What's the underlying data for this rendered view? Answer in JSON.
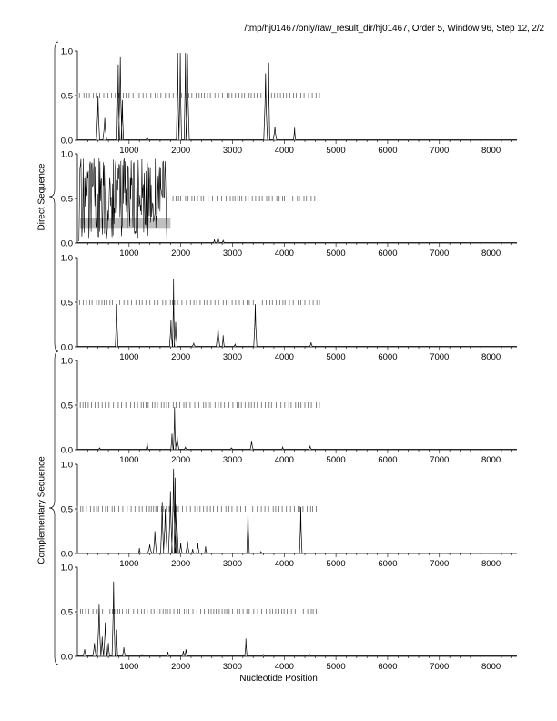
{
  "header": {
    "title": "/tmp/hj01467/only/raw_result_dir/hj01467, Order 5, Window 96, Step 12, 2/2"
  },
  "groups": {
    "direct_label": "Direct Sequence",
    "complementary_label": "Complementary Sequence"
  },
  "x_axis": {
    "label": "Nucleotide Position"
  },
  "colors": {
    "line": "#000000",
    "ticks": "#666666",
    "highlight": "#bfbfbf"
  },
  "chart_data": [
    {
      "type": "line",
      "panel": 1,
      "group": "direct",
      "xlim": [
        0,
        8500
      ],
      "ylim": [
        0,
        1
      ],
      "x_ticks": [
        1000,
        2000,
        3000,
        4000,
        5000,
        6000,
        7000,
        8000
      ],
      "y_ticks": [
        "0.0",
        "0.5",
        "1.0"
      ],
      "peaks": [
        [
          400,
          0.5
        ],
        [
          530,
          0.25
        ],
        [
          790,
          0.85
        ],
        [
          830,
          0.93
        ],
        [
          870,
          0.45
        ],
        [
          1350,
          0.03
        ],
        [
          1940,
          0.98
        ],
        [
          1990,
          0.98
        ],
        [
          2090,
          0.98
        ],
        [
          2130,
          0.97
        ],
        [
          3640,
          0.75
        ],
        [
          3700,
          0.87
        ],
        [
          3820,
          0.15
        ],
        [
          4200,
          0.14
        ]
      ],
      "marker_row": {
        "y": 0.5,
        "from": 0,
        "to": 4700
      }
    },
    {
      "type": "line",
      "panel": 2,
      "group": "direct",
      "xlim": [
        0,
        8500
      ],
      "ylim": [
        0,
        1
      ],
      "x_ticks": [
        1000,
        2000,
        3000,
        4000,
        5000,
        6000,
        7000,
        8000
      ],
      "y_ticks": [
        "0.0",
        "0.5",
        "1.0"
      ],
      "dense_region": [
        50,
        1700
      ],
      "highlight_band": {
        "x0": 50,
        "x1": 1800,
        "y0": 0.16,
        "y1": 0.28
      },
      "peaks": [
        [
          2650,
          0.04
        ],
        [
          2720,
          0.08
        ],
        [
          2820,
          0.03
        ]
      ],
      "marker_row": {
        "y": 0.5,
        "from": 1850,
        "to": 4650
      }
    },
    {
      "type": "line",
      "panel": 3,
      "group": "direct",
      "xlim": [
        0,
        8500
      ],
      "ylim": [
        0,
        1
      ],
      "x_ticks": [
        1000,
        2000,
        3000,
        4000,
        5000,
        6000,
        7000,
        8000
      ],
      "y_ticks": [
        "0.0",
        "0.5",
        "1.0"
      ],
      "peaks": [
        [
          760,
          0.48
        ],
        [
          1810,
          0.3
        ],
        [
          1860,
          0.76
        ],
        [
          1900,
          0.28
        ],
        [
          2250,
          0.04
        ],
        [
          2720,
          0.22
        ],
        [
          2820,
          0.13
        ],
        [
          3050,
          0.03
        ],
        [
          3440,
          0.48
        ],
        [
          4520,
          0.05
        ]
      ],
      "marker_row": {
        "y": 0.5,
        "from": 0,
        "to": 4700
      }
    },
    {
      "type": "line",
      "panel": 4,
      "group": "complementary",
      "xlim": [
        0,
        8500
      ],
      "ylim": [
        0,
        1
      ],
      "x_ticks": [
        1000,
        2000,
        3000,
        4000,
        5000,
        6000,
        7000,
        8000
      ],
      "y_ticks": [
        "0.0",
        "0.5",
        "1.0"
      ],
      "peaks": [
        [
          430,
          0.02
        ],
        [
          1350,
          0.08
        ],
        [
          1830,
          0.18
        ],
        [
          1880,
          0.48
        ],
        [
          1930,
          0.15
        ],
        [
          2090,
          0.03
        ],
        [
          2980,
          0.02
        ],
        [
          3370,
          0.1
        ],
        [
          3970,
          0.03
        ],
        [
          4500,
          0.04
        ]
      ],
      "marker_row": {
        "y": 0.5,
        "from": 0,
        "to": 4700
      }
    },
    {
      "type": "line",
      "panel": 5,
      "group": "complementary",
      "xlim": [
        0,
        8500
      ],
      "ylim": [
        0,
        1
      ],
      "x_ticks": [
        1000,
        2000,
        3000,
        4000,
        5000,
        6000,
        7000,
        8000
      ],
      "y_ticks": [
        "0.0",
        "0.5",
        "1.0"
      ],
      "peaks": [
        [
          1200,
          0.06
        ],
        [
          1400,
          0.1
        ],
        [
          1500,
          0.25
        ],
        [
          1640,
          0.58
        ],
        [
          1700,
          0.5
        ],
        [
          1800,
          0.7
        ],
        [
          1860,
          0.95
        ],
        [
          1890,
          0.85
        ],
        [
          1920,
          0.55
        ],
        [
          2000,
          0.12
        ],
        [
          2130,
          0.14
        ],
        [
          2230,
          0.05
        ],
        [
          2330,
          0.12
        ],
        [
          2480,
          0.08
        ],
        [
          3300,
          0.52
        ],
        [
          3550,
          0.02
        ],
        [
          4320,
          0.52
        ]
      ],
      "marker_row": {
        "y": 0.5,
        "from": 0,
        "to": 4650
      }
    },
    {
      "type": "line",
      "panel": 6,
      "group": "complementary",
      "xlim": [
        0,
        8500
      ],
      "ylim": [
        0,
        1
      ],
      "x_ticks": [
        1000,
        2000,
        3000,
        4000,
        5000,
        6000,
        7000,
        8000
      ],
      "y_ticks": [
        "0.0",
        "0.5",
        "1.0"
      ],
      "peaks": [
        [
          140,
          0.08
        ],
        [
          330,
          0.15
        ],
        [
          420,
          0.58
        ],
        [
          480,
          0.22
        ],
        [
          540,
          0.38
        ],
        [
          600,
          0.15
        ],
        [
          700,
          0.84
        ],
        [
          760,
          0.3
        ],
        [
          900,
          0.1
        ],
        [
          1250,
          0.02
        ],
        [
          1750,
          0.05
        ],
        [
          2050,
          0.06
        ],
        [
          2100,
          0.08
        ],
        [
          3260,
          0.2
        ],
        [
          3600,
          0.02
        ],
        [
          4500,
          0.02
        ]
      ],
      "marker_row": {
        "y": 0.5,
        "from": 0,
        "to": 4650
      }
    }
  ]
}
